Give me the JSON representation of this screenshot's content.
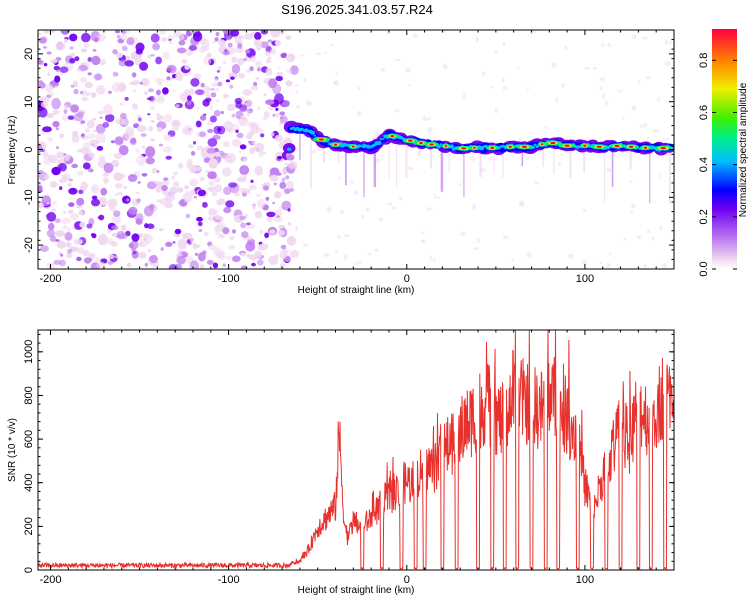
{
  "title": "S196.2025.341.03.57.R24",
  "chart_data": [
    {
      "type": "heatmap",
      "xlabel": "Height of straight line (km)",
      "ylabel": "Frequency (Hz)",
      "xlim": [
        -207,
        150
      ],
      "ylim": [
        -25,
        25
      ],
      "xticks": [
        -200,
        -100,
        0,
        100
      ],
      "xtick_labels": [
        "-200",
        "-100",
        "0",
        "100"
      ],
      "yticks": [
        -20,
        -10,
        0,
        10,
        20
      ],
      "ytick_labels": [
        "-20",
        "-10",
        "0",
        "10",
        "20"
      ],
      "noise_region_end_km": -63,
      "ridge": {
        "x": [
          -65,
          -55,
          -50,
          -45,
          -40,
          -35,
          -30,
          -20,
          -10,
          0,
          10,
          20,
          30,
          40,
          50,
          60,
          70,
          80,
          90,
          100,
          110,
          120,
          130,
          140,
          150
        ],
        "freq": [
          4.5,
          4.0,
          2.5,
          1.5,
          1.0,
          0.8,
          0.6,
          0.5,
          3.0,
          2.0,
          1.2,
          0.8,
          0.2,
          0.4,
          0.3,
          0.6,
          0.5,
          1.5,
          0.8,
          0.8,
          0.5,
          0.8,
          0.4,
          0.3,
          0.3
        ]
      },
      "colorbar": {
        "label": "Normalized spectral amplitude",
        "range": [
          0,
          0.92
        ],
        "ticks": [
          0.0,
          0.2,
          0.4,
          0.6,
          0.8
        ],
        "tick_labels": [
          "0.0",
          "0.2",
          "0.4",
          "0.6",
          "0.8"
        ],
        "colormap": [
          "#f0d8f0",
          "#c080f0",
          "#7000f0",
          "#0000ff",
          "#00c0ff",
          "#00f080",
          "#40f000",
          "#f0f000",
          "#ff8000",
          "#ff0040"
        ]
      }
    },
    {
      "type": "line",
      "xlabel": "Height of straight line (km)",
      "ylabel": "SNR (10 * v/v)",
      "xlim": [
        -207,
        150
      ],
      "ylim": [
        0,
        1100
      ],
      "xticks": [
        -200,
        -100,
        0,
        100
      ],
      "xtick_labels": [
        "-200",
        "-100",
        "0",
        "100"
      ],
      "yticks": [
        0,
        200,
        400,
        600,
        800,
        1000
      ],
      "ytick_labels": [
        "0",
        "200",
        "400",
        "600",
        "800",
        "1000"
      ],
      "line_color": "#e8302c",
      "series": [
        {
          "name": "SNR",
          "x": [
            -207,
            -150,
            -100,
            -70,
            -60,
            -55,
            -50,
            -45,
            -40,
            -38,
            -35,
            -33,
            -30,
            -25,
            -20,
            -15,
            -10,
            -5,
            0,
            5,
            10,
            15,
            20,
            25,
            30,
            35,
            40,
            45,
            50,
            55,
            60,
            65,
            70,
            75,
            80,
            85,
            90,
            95,
            100,
            105,
            110,
            115,
            120,
            125,
            130,
            135,
            140,
            145,
            150
          ],
          "values": [
            20,
            20,
            20,
            25,
            40,
            100,
            200,
            250,
            300,
            650,
            220,
            150,
            230,
            200,
            250,
            300,
            350,
            380,
            420,
            400,
            500,
            480,
            550,
            600,
            650,
            700,
            750,
            800,
            720,
            700,
            850,
            800,
            780,
            750,
            850,
            780,
            720,
            650,
            400,
            280,
            450,
            550,
            680,
            600,
            780,
            720,
            760,
            850,
            720
          ]
        }
      ],
      "dropout_centers_km": [
        -25,
        -14,
        -3,
        5,
        10,
        20,
        28,
        40,
        48,
        55,
        62,
        70,
        78,
        85,
        96,
        104,
        112,
        120,
        130,
        137,
        145
      ]
    }
  ]
}
